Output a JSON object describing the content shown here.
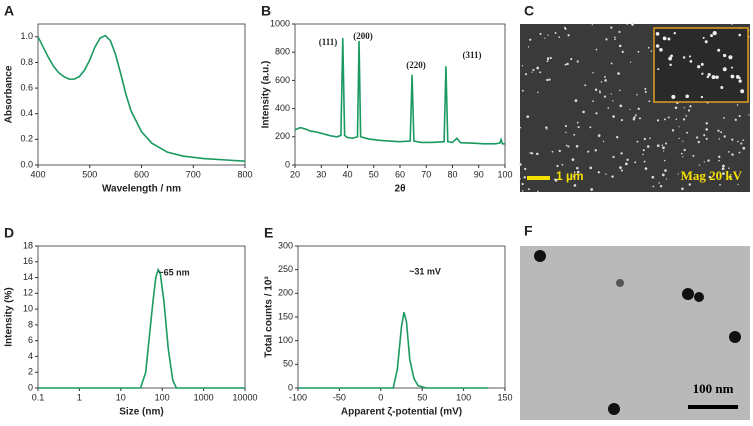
{
  "chart_data": [
    {
      "type": "line",
      "label": "A",
      "xlabel": "Wavelength / nm",
      "ylabel": "Absorbance",
      "xlim": [
        400,
        800
      ],
      "xticks": [
        400,
        500,
        600,
        700,
        800
      ],
      "ylim": [
        0,
        1.1
      ],
      "yticks": [
        {
          "value": 0,
          "label": "0.0"
        },
        {
          "value": 0.2,
          "label": "0.2"
        },
        {
          "value": 0.4,
          "label": "0.4"
        },
        {
          "value": 0.6,
          "label": "0.6"
        },
        {
          "value": 0.8,
          "label": "0.8"
        },
        {
          "value": 1,
          "label": "1.0"
        }
      ],
      "x": [
        400,
        410,
        420,
        430,
        440,
        450,
        460,
        470,
        480,
        490,
        500,
        510,
        520,
        530,
        540,
        550,
        560,
        570,
        580,
        600,
        620,
        650,
        680,
        720,
        760,
        800
      ],
      "values": [
        1.0,
        0.92,
        0.84,
        0.77,
        0.72,
        0.69,
        0.67,
        0.67,
        0.69,
        0.74,
        0.82,
        0.92,
        0.99,
        1.01,
        0.97,
        0.86,
        0.71,
        0.55,
        0.42,
        0.26,
        0.17,
        0.1,
        0.07,
        0.05,
        0.04,
        0.03
      ],
      "color": "#1a9a60",
      "annotations": []
    },
    {
      "type": "line",
      "label": "B",
      "xlabel": "2θ",
      "ylabel": "Intensity (a.u.)",
      "xlim": [
        20,
        100
      ],
      "xticks": [
        20,
        30,
        40,
        50,
        60,
        70,
        80,
        90,
        100
      ],
      "ylim": [
        0,
        1000
      ],
      "yticks": [
        0,
        200,
        400,
        600,
        800,
        1000
      ],
      "x": [
        20,
        22,
        24,
        26,
        28,
        30,
        32,
        34,
        36,
        37.5,
        38.2,
        38.9,
        40,
        42,
        43.8,
        44.4,
        45,
        48,
        52,
        56,
        60,
        63.9,
        64.6,
        65.3,
        68,
        72,
        76.8,
        77.5,
        78.2,
        80,
        81.7,
        83,
        88,
        92,
        96,
        98,
        98.5,
        99,
        100
      ],
      "values": [
        250,
        265,
        255,
        240,
        235,
        225,
        215,
        205,
        200,
        210,
        900,
        210,
        195,
        190,
        200,
        880,
        200,
        185,
        175,
        170,
        165,
        170,
        640,
        170,
        160,
        160,
        165,
        700,
        165,
        160,
        190,
        158,
        155,
        150,
        150,
        155,
        180,
        150,
        150
      ],
      "color": "#1a9a60",
      "annotations": [
        "(111)",
        "(200)",
        "(220)",
        "(311)"
      ]
    },
    {
      "type": "line",
      "label": "D",
      "xlabel": "Size (nm)",
      "ylabel": "Intensity (%)",
      "xscale": "log",
      "xlim": [
        0.1,
        10000
      ],
      "xticks": [
        0.1,
        1,
        10,
        100,
        1000,
        10000
      ],
      "ylim": [
        0,
        18
      ],
      "yticks": [
        0,
        2,
        4,
        6,
        8,
        10,
        12,
        14,
        16,
        18
      ],
      "x": [
        0.1,
        30,
        40,
        50,
        60,
        70,
        80,
        90,
        110,
        140,
        180,
        220,
        10000
      ],
      "values": [
        0,
        0,
        2,
        7,
        11,
        14,
        15,
        14.5,
        11,
        5,
        1,
        0,
        0
      ],
      "color": "#1a9a60",
      "annotations": [
        "~65 nm"
      ]
    },
    {
      "type": "line",
      "label": "E",
      "xlabel": "Apparent ζ-potential (mV)",
      "ylabel": "Total counts / 10³",
      "xlim": [
        -100,
        150
      ],
      "xticks": [
        -100,
        -50,
        0,
        50,
        100,
        150
      ],
      "ylim": [
        0,
        300
      ],
      "yticks": [
        0,
        50,
        100,
        150,
        200,
        250,
        300
      ],
      "x": [
        -100,
        15,
        20,
        25,
        28,
        31,
        35,
        40,
        45,
        55,
        130
      ],
      "values": [
        0,
        0,
        40,
        130,
        160,
        140,
        60,
        20,
        5,
        0,
        0
      ],
      "color": "#1a9a60",
      "annotations": [
        "~31 mV"
      ]
    }
  ],
  "images": [
    {
      "label": "C",
      "scale_bar": "1 µm",
      "info": "Mag 20 kV"
    },
    {
      "label": "F",
      "scale_bar": "100 nm"
    }
  ]
}
